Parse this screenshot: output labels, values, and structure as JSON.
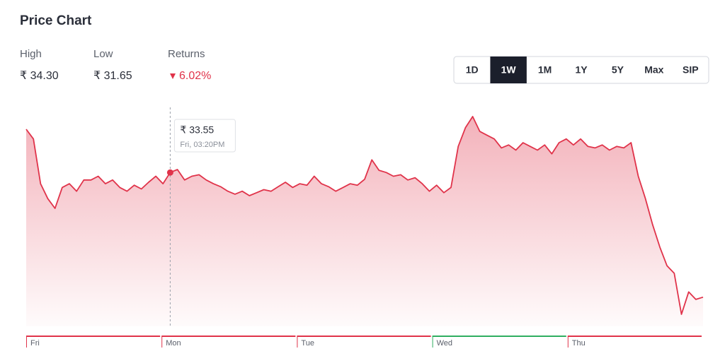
{
  "header": {
    "title": "Price Chart"
  },
  "stats": [
    {
      "label": "High",
      "value": "₹ 34.30"
    },
    {
      "label": "Low",
      "value": "₹ 31.65"
    },
    {
      "label": "Returns",
      "value": "6.02%",
      "direction": "down"
    }
  ],
  "tabs": [
    "1D",
    "1W",
    "1M",
    "1Y",
    "5Y",
    "Max",
    "SIP"
  ],
  "active_tab": "1W",
  "chart_data": {
    "type": "line",
    "color": "#e0334a",
    "values": [
      34.13,
      34.0,
      33.4,
      33.2,
      33.07,
      33.35,
      33.4,
      33.3,
      33.45,
      33.45,
      33.5,
      33.4,
      33.45,
      33.35,
      33.3,
      33.38,
      33.33,
      33.42,
      33.5,
      33.4,
      33.55,
      33.59,
      33.45,
      33.5,
      33.52,
      33.45,
      33.4,
      33.36,
      33.3,
      33.26,
      33.3,
      33.24,
      33.28,
      33.32,
      33.3,
      33.36,
      33.42,
      33.35,
      33.4,
      33.38,
      33.5,
      33.4,
      33.36,
      33.3,
      33.35,
      33.4,
      33.38,
      33.46,
      33.72,
      33.58,
      33.55,
      33.5,
      33.52,
      33.45,
      33.48,
      33.4,
      33.3,
      33.38,
      33.28,
      33.35,
      33.9,
      34.15,
      34.3,
      34.1,
      34.05,
      34.0,
      33.88,
      33.92,
      33.85,
      33.95,
      33.9,
      33.85,
      33.92,
      33.8,
      33.95,
      34.0,
      33.92,
      34.0,
      33.9,
      33.88,
      33.92,
      33.85,
      33.9,
      33.88,
      33.95,
      33.5,
      33.2,
      32.85,
      32.55,
      32.3,
      32.2,
      31.65,
      31.95,
      31.85,
      31.88
    ],
    "tooltip": {
      "value": 33.55,
      "label": "₹ 33.55",
      "time": "Fri, 03:20PM"
    },
    "days": [
      {
        "label": "Fri",
        "color": "#e0334a"
      },
      {
        "label": "Mon",
        "color": "#e0334a"
      },
      {
        "label": "Tue",
        "color": "#e0334a"
      },
      {
        "label": "Wed",
        "color": "#2fae60"
      },
      {
        "label": "Thu",
        "color": "#e0334a"
      }
    ]
  }
}
